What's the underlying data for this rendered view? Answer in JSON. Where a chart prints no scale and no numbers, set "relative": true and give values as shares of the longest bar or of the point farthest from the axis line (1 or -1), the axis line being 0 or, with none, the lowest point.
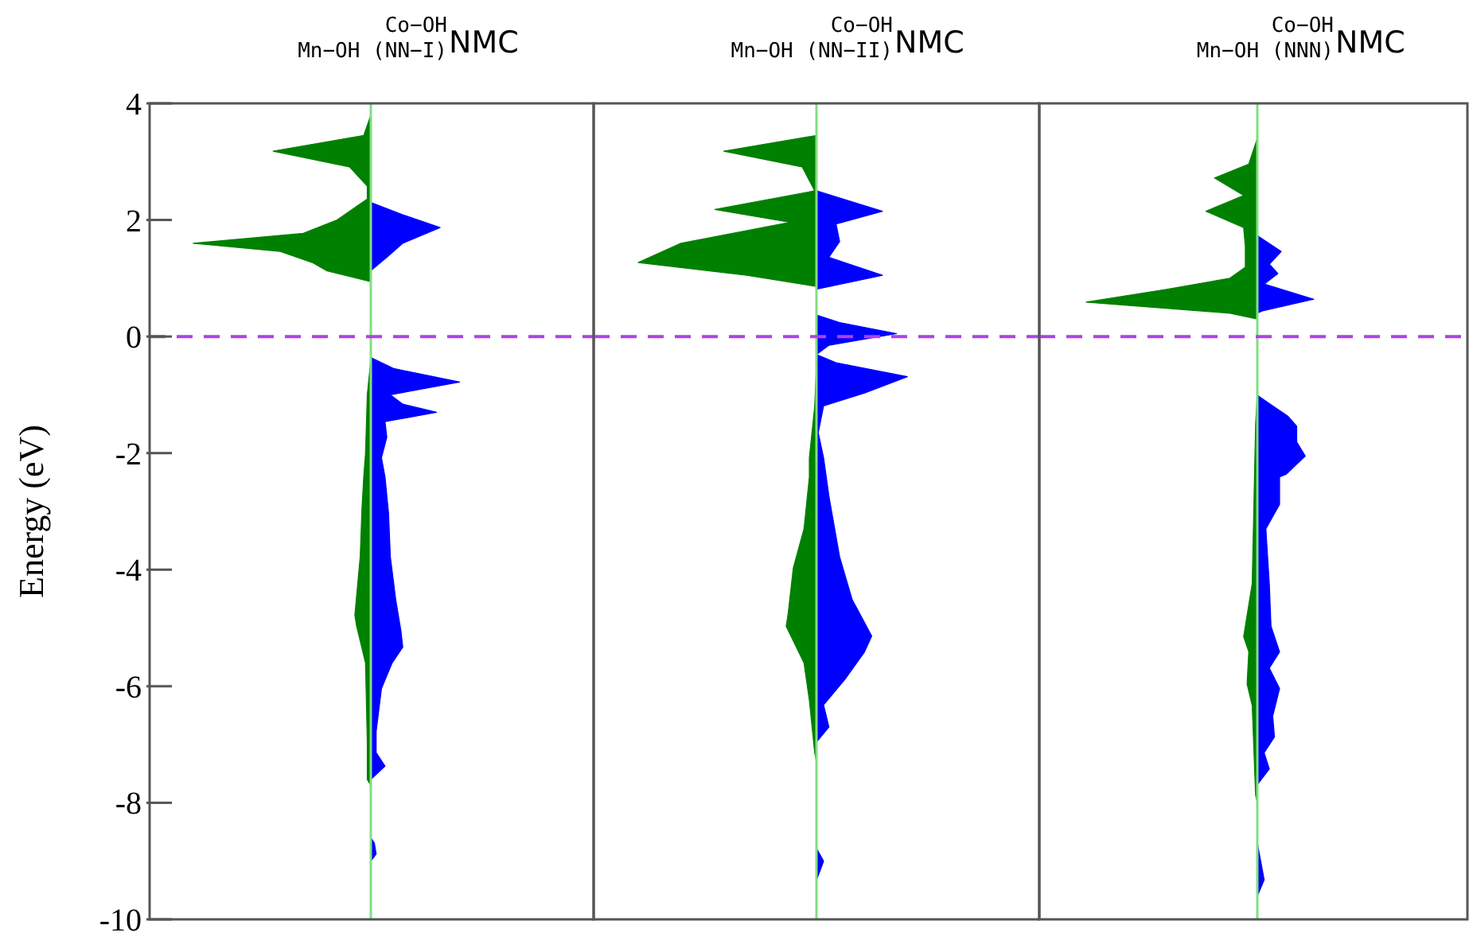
{
  "chart_data": [
    {
      "type": "area",
      "orientation": "horizontal",
      "relative": true,
      "title": "$^{Co−OH}$$_{Mn−OH (NN−I)}$NMC",
      "ylabel": "Energy (eV)",
      "ylim": [
        -10,
        4
      ],
      "yticks": [
        4,
        2,
        0,
        -2,
        -4,
        -6,
        -8,
        -10
      ],
      "tick_labels": "y",
      "ref_lines": [
        {
          "axis": "y",
          "value": 0,
          "color": "#b040e8",
          "line_style": "dashed"
        },
        {
          "axis": "x",
          "value": 0,
          "color": "#80e080"
        }
      ],
      "series": [
        {
          "color": "#008000",
          "x": [
            3.8,
            3.45,
            3.18,
            2.91,
            2.58,
            2.36,
            2.0,
            1.77,
            1.6,
            1.46,
            1.27,
            1.13,
            0.94,
            -0.4,
            -1.0,
            -2.0,
            -2.41,
            -2.95,
            -3.78,
            -4.78,
            -4.97,
            -5.6,
            -6.96,
            -7.6,
            -7.7
          ],
          "values": [
            0,
            -0.04,
            -0.55,
            -0.12,
            -0.02,
            -0.02,
            -0.19,
            -0.38,
            -1,
            -0.51,
            -0.33,
            -0.25,
            0,
            0,
            -0.02,
            -0.03,
            -0.04,
            -0.05,
            -0.06,
            -0.09,
            -0.08,
            -0.03,
            -0.02,
            -0.02,
            0
          ]
        },
        {
          "color": "#0000ff",
          "x": [
            2.3,
            2.09,
            1.87,
            1.6,
            1.36,
            1.13,
            -0.36,
            -0.55,
            -0.78,
            -1.0,
            -1.16,
            -1.3,
            -1.46,
            -1.73,
            -2.08,
            -2.41,
            -3.04,
            -3.78,
            -4.51,
            -5.06,
            -5.33,
            -5.6,
            -6.04,
            -6.78,
            -7.14,
            -7.37,
            -7.6,
            -8.6,
            -8.69,
            -8.88,
            -9.0
          ],
          "values": [
            0,
            0.18,
            0.39,
            0.18,
            0.09,
            0,
            0,
            0.13,
            0.5,
            0.11,
            0.18,
            0.37,
            0.08,
            0.09,
            0.06,
            0.08,
            0.1,
            0.11,
            0.14,
            0.17,
            0.18,
            0.12,
            0.06,
            0.03,
            0.03,
            0.08,
            0,
            0,
            0.02,
            0.03,
            0
          ]
        }
      ]
    },
    {
      "type": "area",
      "orientation": "horizontal",
      "relative": true,
      "title": "$^{Co−OH}$$_{Mn−OH (NN−II)}$NMC",
      "ylim": [
        -10,
        4
      ],
      "tick_labels": false,
      "ref_lines": [
        {
          "axis": "y",
          "value": 0,
          "color": "#b040e8",
          "line_style": "dashed"
        },
        {
          "axis": "x",
          "value": 0,
          "color": "#80e080"
        }
      ],
      "series": [
        {
          "color": "#008000",
          "x": [
            3.45,
            3.18,
            2.91,
            2.5,
            2.18,
            1.96,
            1.6,
            1.27,
            1.05,
            0.86,
            -0.5,
            -1.2,
            -2.08,
            -2.41,
            -3.3,
            -3.97,
            -4.78,
            -4.97,
            -5.6,
            -6.24,
            -7.14,
            -7.3
          ],
          "values": [
            0,
            -0.52,
            -0.08,
            -0.01,
            -0.57,
            -0.15,
            -0.76,
            -1,
            -0.39,
            0,
            0,
            -0.01,
            -0.04,
            -0.04,
            -0.07,
            -0.13,
            -0.16,
            -0.17,
            -0.07,
            -0.04,
            -0.01,
            0
          ]
        },
        {
          "color": "#0000ff",
          "x": [
            2.5,
            2.15,
            1.93,
            1.63,
            1.36,
            1.05,
            0.81,
            0.37,
            0.24,
            0.05,
            -0.15,
            -0.31,
            -0.45,
            -0.69,
            -0.97,
            -1.19,
            -1.65,
            -2.08,
            -2.74,
            -3.78,
            -4.51,
            -5.14,
            -5.41,
            -5.88,
            -6.32,
            -6.7,
            -6.96,
            -8.78,
            -9.0,
            -9.33
          ],
          "values": [
            0,
            0.37,
            0.11,
            0.13,
            0.07,
            0.37,
            0,
            0,
            0.13,
            0.45,
            0.07,
            0,
            0.11,
            0.51,
            0.27,
            0.04,
            0.01,
            0.04,
            0.07,
            0.13,
            0.2,
            0.31,
            0.27,
            0.16,
            0.04,
            0.07,
            0,
            0,
            0.04,
            0
          ]
        }
      ]
    },
    {
      "type": "area",
      "orientation": "horizontal",
      "relative": true,
      "title": "$^{Co−OH}$$_{Mn−OH (NNN)}$NMC",
      "ylim": [
        -10,
        4
      ],
      "tick_labels": false,
      "ref_lines": [
        {
          "axis": "y",
          "value": 0,
          "color": "#b040e8",
          "line_style": "dashed"
        },
        {
          "axis": "x",
          "value": 0,
          "color": "#80e080"
        }
      ],
      "series": [
        {
          "color": "#008000",
          "x": [
            3.4,
            2.96,
            2.72,
            2.42,
            2.15,
            1.87,
            1.54,
            1.19,
            1.0,
            0.81,
            0.59,
            0.4,
            0.3,
            -1.0,
            -1.5,
            -4.24,
            -5.15,
            -5.41,
            -5.96,
            -6.33,
            -7.87,
            -8.0
          ],
          "values": [
            0,
            -0.05,
            -0.25,
            -0.08,
            -0.3,
            -0.08,
            -0.07,
            -0.07,
            -0.16,
            -0.53,
            -1,
            -0.16,
            0,
            0,
            -0.01,
            -0.03,
            -0.08,
            -0.05,
            -0.06,
            -0.03,
            -0.01,
            0
          ]
        },
        {
          "color": "#0000ff",
          "x": [
            1.73,
            1.46,
            1.24,
            1.08,
            0.9,
            0.64,
            0.44,
            0.4,
            -1.0,
            -1.05,
            -1.37,
            -1.54,
            -1.81,
            -2.05,
            -2.36,
            -2.41,
            -2.88,
            -3.3,
            -4.24,
            -4.97,
            -5.41,
            -5.69,
            -6.04,
            -6.51,
            -6.87,
            -7.14,
            -7.42,
            -7.69,
            -8.69,
            -9.32,
            -9.6
          ],
          "values": [
            0,
            0.14,
            0.07,
            0.12,
            0.04,
            0.33,
            0.03,
            0,
            0,
            0.02,
            0.18,
            0.23,
            0.23,
            0.28,
            0.17,
            0.13,
            0.13,
            0.05,
            0.07,
            0.08,
            0.13,
            0.07,
            0.13,
            0.09,
            0.1,
            0.04,
            0.07,
            0,
            0,
            0.04,
            0
          ]
        }
      ]
    }
  ]
}
